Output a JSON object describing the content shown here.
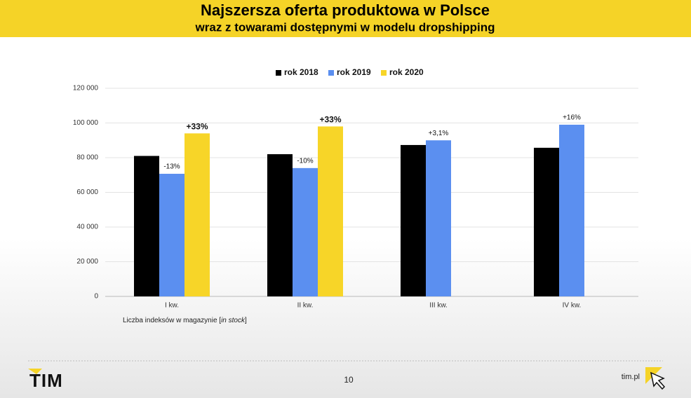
{
  "chart_data": {
    "type": "bar",
    "title": "Najszersza oferta produktowa w Polsce",
    "subtitle": "wraz z towarami dostępnymi w modelu dropshipping",
    "categories": [
      "I kw.",
      "II kw.",
      "III kw.",
      "IV kw."
    ],
    "series": [
      {
        "name": "rok 2018",
        "color": "#000000",
        "values": [
          81000,
          82000,
          87300,
          85700
        ]
      },
      {
        "name": "rok 2019",
        "color": "#5b8ff0",
        "values": [
          70700,
          74000,
          90000,
          99000
        ],
        "annotations": [
          "-13%",
          "-10%",
          "+3,1%",
          "+16%"
        ]
      },
      {
        "name": "rok 2020",
        "color": "#f7d528",
        "values": [
          94000,
          98000,
          null,
          null
        ],
        "annotations": [
          "+33%",
          "+33%",
          null,
          null
        ]
      }
    ],
    "ylim": [
      0,
      120000
    ],
    "yticks": [
      0,
      {
        "value": 20000,
        "label": "20 000"
      },
      {
        "value": 40000,
        "label": "40 000"
      },
      {
        "value": 60000,
        "label": "60 000"
      },
      {
        "value": 80000,
        "label": "80 000"
      },
      {
        "value": 100000,
        "label": "100 000"
      },
      {
        "value": 120000,
        "label": "120 000"
      }
    ],
    "grid": true,
    "legend": "top",
    "note": [
      "Liczba indeksów w magazynie [",
      "in stock",
      "]"
    ]
  },
  "slide": {
    "logo": "TIM",
    "page_number": 10,
    "site": "tim.pl"
  }
}
